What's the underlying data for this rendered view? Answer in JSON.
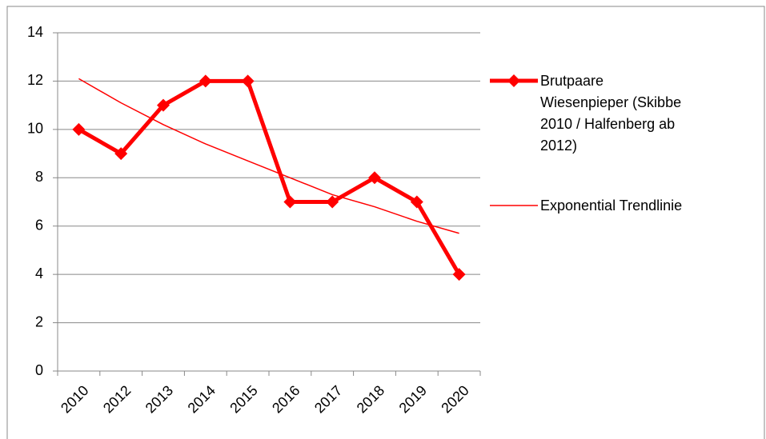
{
  "chart_data": {
    "type": "line",
    "categories": [
      "2010",
      "2012",
      "2013",
      "2014",
      "2015",
      "2016",
      "2017",
      "2018",
      "2019",
      "2020"
    ],
    "series": [
      {
        "name": "Brutpaare Wiesenpieper (Skibbe 2010 / Halfenberg ab 2012)",
        "color": "#ff0000",
        "marker": "diamond",
        "values": [
          10,
          9,
          11,
          12,
          12,
          7,
          7,
          8,
          7,
          4
        ]
      },
      {
        "name": "Exponential Trendlinie",
        "color": "#ff0000",
        "values": [
          12.1,
          11.1,
          10.2,
          9.4,
          8.7,
          8.0,
          7.3,
          6.8,
          6.2,
          5.7
        ]
      }
    ],
    "ylim": [
      0,
      14
    ],
    "yticks": [
      0,
      2,
      4,
      6,
      8,
      10,
      12,
      14
    ],
    "grid": true,
    "legend": "right"
  }
}
